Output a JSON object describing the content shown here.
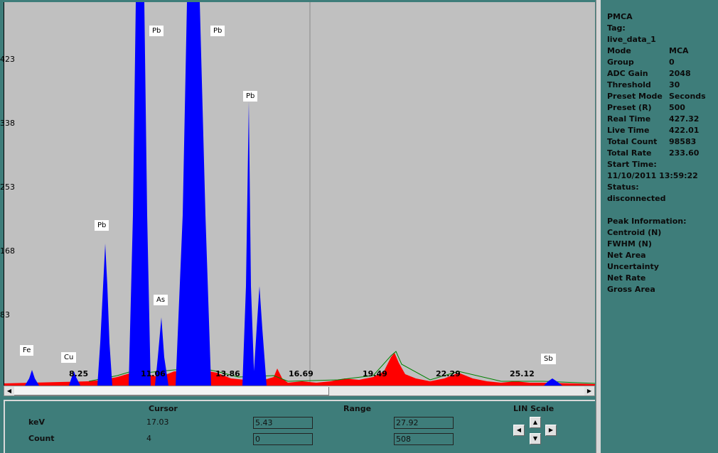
{
  "chart_data": {
    "type": "area",
    "yticks": [
      "423",
      "338",
      "253",
      "168",
      "83"
    ],
    "xticks": [
      "8.25",
      "11.06",
      "13.86",
      "16.69",
      "19.49",
      "22.29",
      "25.12"
    ],
    "peak_labels": [
      "Fe",
      "Cu",
      "Pb",
      "Pb",
      "Pb",
      "As",
      "Pb",
      "Sb"
    ],
    "series": [
      {
        "color": "#0000ff"
      },
      {
        "color": "#ff0000"
      },
      {
        "color": "#008000"
      }
    ]
  },
  "bottom": {
    "cursor_header": "Cursor",
    "range_header": "Range",
    "scale_header": "LIN Scale",
    "kev_label": "keV",
    "count_label": "Count",
    "cursor_kev": "17.03",
    "cursor_count": "4",
    "range_kev_low": "5.43",
    "range_kev_high": "27.92",
    "range_count_low": "0",
    "range_count_high": "508"
  },
  "info": {
    "title": "PMCA",
    "tag_label": "Tag:",
    "tag_value": "live_data_1",
    "rows": [
      {
        "label": "Mode",
        "value": "MCA"
      },
      {
        "label": "Group",
        "value": "0"
      },
      {
        "label": "ADC Gain",
        "value": "2048"
      },
      {
        "label": "Threshold",
        "value": "30"
      },
      {
        "label": "Preset Mode",
        "value": "Seconds"
      },
      {
        "label": "Preset (R)",
        "value": "500"
      },
      {
        "label": "Real Time",
        "value": "427.32"
      },
      {
        "label": "Live Time",
        "value": "422.01"
      },
      {
        "label": "Total Count",
        "value": "98583"
      },
      {
        "label": "Total Rate",
        "value": "233.60"
      }
    ],
    "start_label": "Start Time:",
    "start_value": "11/10/2011 13:59:22",
    "status_label": "Status:",
    "status_value": "disconnected",
    "peak_header": "Peak Information:",
    "peak_rows": [
      "Centroid (N)",
      "FWHM (N)",
      "Net Area",
      "Uncertainty",
      "Net Rate",
      "Gross Area"
    ]
  }
}
